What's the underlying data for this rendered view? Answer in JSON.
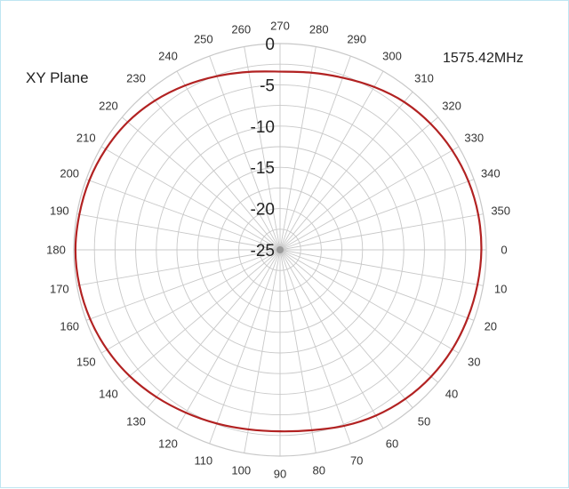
{
  "chart_data": {
    "type": "polar-line",
    "title": "XY Plane",
    "frequency_label": "1575.42MHz",
    "angle_labels": [
      "0",
      "10",
      "20",
      "30",
      "40",
      "50",
      "60",
      "70",
      "80",
      "90",
      "100",
      "110",
      "120",
      "130",
      "140",
      "150",
      "160",
      "170",
      "180",
      "190",
      "200",
      "210",
      "220",
      "230",
      "240",
      "250",
      "260",
      "270",
      "280",
      "290",
      "300",
      "310",
      "320",
      "330",
      "340",
      "350"
    ],
    "radial_tick_labels": [
      "0",
      "-5",
      "-10",
      "-15",
      "-20",
      "-25"
    ],
    "radial_range": [
      -25,
      0
    ],
    "grid": true,
    "series": [
      {
        "color": "#b22222",
        "theta": [
          0,
          10,
          20,
          30,
          40,
          50,
          60,
          70,
          80,
          90,
          100,
          110,
          120,
          130,
          140,
          150,
          160,
          170,
          180,
          190,
          200,
          210,
          220,
          230,
          240,
          250,
          260,
          270,
          280,
          290,
          300,
          310,
          320,
          330,
          340,
          350
        ],
        "r_db": [
          -0.6,
          -0.7,
          -0.8,
          -0.9,
          -1.1,
          -1.4,
          -1.8,
          -2.3,
          -2.8,
          -3.0,
          -2.9,
          -2.6,
          -2.2,
          -1.7,
          -1.2,
          -0.8,
          -0.5,
          -0.3,
          -0.2,
          -0.3,
          -0.4,
          -0.6,
          -0.9,
          -1.4,
          -2.0,
          -2.6,
          -3.1,
          -3.4,
          -3.2,
          -2.8,
          -2.2,
          -1.6,
          -1.2,
          -0.9,
          -0.7,
          -0.6
        ]
      }
    ]
  },
  "colors": {
    "grid": "#c8c8c8",
    "series": "#b22222",
    "text": "#222222"
  }
}
